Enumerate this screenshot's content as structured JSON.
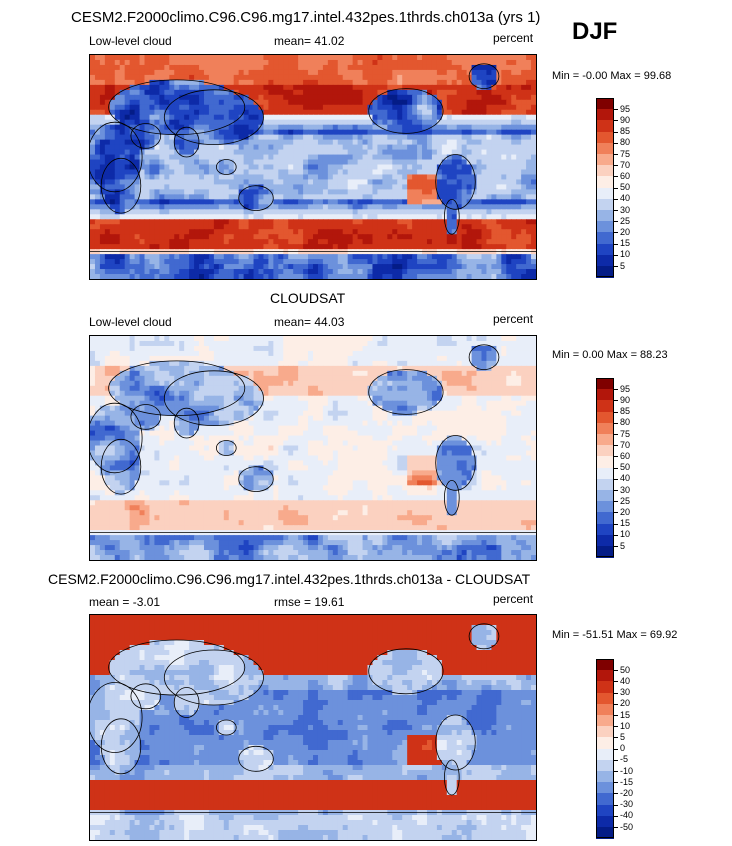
{
  "header": {
    "title": "CESM2.F2000climo.C96.C96.mg17.intel.432pes.1thrds.ch013a (yrs 1)",
    "season": "DJF"
  },
  "panels": [
    {
      "title": "",
      "left_label": "Low-level cloud",
      "center_label": "mean=  41.02",
      "right_label": "percent",
      "minmax": "Min =  -0.00 Max =  99.68",
      "field_kind": "model"
    },
    {
      "title": "CLOUDSAT",
      "left_label": "Low-level cloud",
      "center_label": "mean=  44.03",
      "right_label": "percent",
      "minmax": "Min =   0.00 Max =  88.23",
      "field_kind": "obs"
    },
    {
      "title": "CESM2.F2000climo.C96.C96.mg17.intel.432pes.1thrds.ch013a - CLOUDSAT",
      "left_label": "mean =  -3.01",
      "center_label": "rmse =  19.61",
      "right_label": "percent",
      "minmax": "Min = -51.51 Max =  69.92",
      "field_kind": "diff"
    }
  ],
  "colorbars": {
    "abs_levels": [
      "95",
      "90",
      "85",
      "80",
      "75",
      "70",
      "60",
      "50",
      "40",
      "30",
      "25",
      "20",
      "15",
      "10",
      "5"
    ],
    "diff_levels": [
      "50",
      "40",
      "30",
      "20",
      "15",
      "10",
      "5",
      "0",
      "-5",
      "-10",
      "-15",
      "-20",
      "-30",
      "-40",
      "-50"
    ],
    "colors": [
      "#7f0000",
      "#b2160b",
      "#cf3217",
      "#e3572f",
      "#f0805a",
      "#f8aa8c",
      "#fbd1c0",
      "#fdeee6",
      "#e8eef9",
      "#c3d3f0",
      "#97b4e6",
      "#6c91dc",
      "#4169d0",
      "#1f44c2",
      "#0d2aa8",
      "#041c87"
    ]
  },
  "chart_data": [
    {
      "type": "heatmap",
      "title": "CESM2.F2000climo.C96.C96.mg17.intel.432pes.1thrds.ch013a (yrs 1)",
      "variable": "Low-level cloud",
      "units": "percent",
      "season": "DJF",
      "mean": 41.02,
      "min": -0.0,
      "max": 99.68,
      "contour_levels": [
        5,
        10,
        15,
        20,
        25,
        30,
        40,
        50,
        60,
        70,
        75,
        80,
        85,
        90,
        95
      ]
    },
    {
      "type": "heatmap",
      "title": "CLOUDSAT",
      "variable": "Low-level cloud",
      "units": "percent",
      "season": "DJF",
      "mean": 44.03,
      "min": 0.0,
      "max": 88.23,
      "contour_levels": [
        5,
        10,
        15,
        20,
        25,
        30,
        40,
        50,
        60,
        70,
        75,
        80,
        85,
        90,
        95
      ]
    },
    {
      "type": "heatmap",
      "title": "CESM2.F2000climo.C96.C96.mg17.intel.432pes.1thrds.ch013a - CLOUDSAT",
      "units": "percent",
      "season": "DJF",
      "mean": -3.01,
      "rmse": 19.61,
      "min": -51.51,
      "max": 69.92,
      "contour_levels": [
        -50,
        -40,
        -30,
        -20,
        -15,
        -10,
        -5,
        0,
        5,
        10,
        15,
        20,
        30,
        40,
        50
      ]
    }
  ]
}
